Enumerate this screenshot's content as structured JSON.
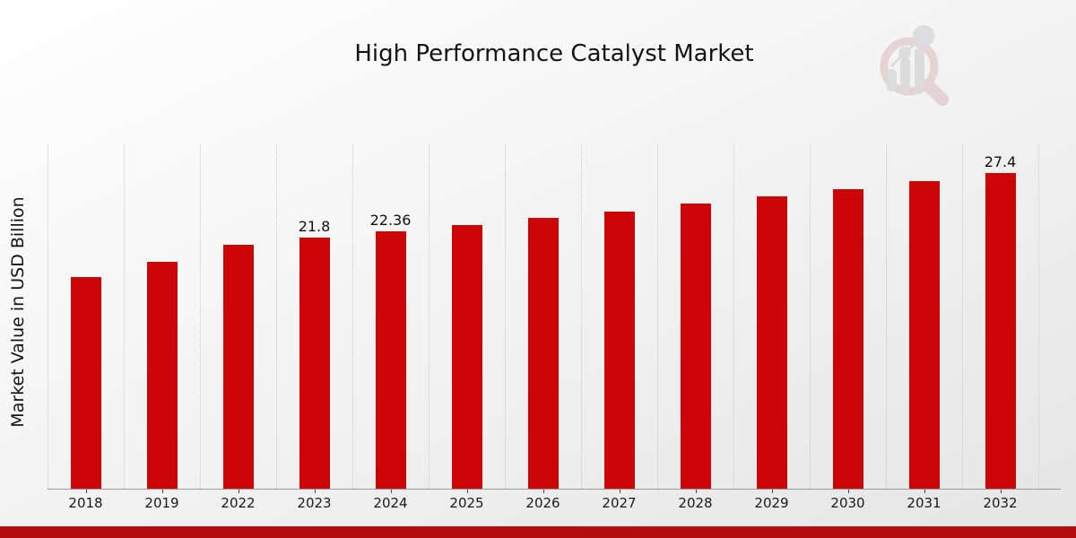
{
  "chart_data": {
    "type": "bar",
    "title": "High Performance Catalyst Market",
    "ylabel": "Market Value in USD Billion",
    "xlabel": "",
    "categories": [
      "2018",
      "2019",
      "2022",
      "2023",
      "2024",
      "2025",
      "2026",
      "2027",
      "2028",
      "2029",
      "2030",
      "2031",
      "2032"
    ],
    "values": [
      18.4,
      19.7,
      21.2,
      21.8,
      22.36,
      22.9,
      23.5,
      24.1,
      24.8,
      25.4,
      26.0,
      26.7,
      27.4
    ],
    "bar_labels": [
      "",
      "",
      "",
      "21.8",
      "22.36",
      "",
      "",
      "",
      "",
      "",
      "",
      "",
      "27.4"
    ],
    "ylim": [
      0,
      30
    ],
    "grid": "vertical-dotted",
    "legend": "none",
    "bar_color": "#cc0606",
    "gridline_color": "#c9c9c9",
    "axis_color": "#9a9a9a",
    "text_color": "#141414"
  },
  "footer": {
    "accent_bar_color": "#b30d0d"
  },
  "icons": {
    "watermark": "magnifier-bar-chart-logo"
  },
  "colors": {
    "background_top": "#ffffff",
    "background_bottom": "#e5e5e5",
    "watermark_red": "#d9b6b6",
    "watermark_gray": "#c6c6c9"
  }
}
